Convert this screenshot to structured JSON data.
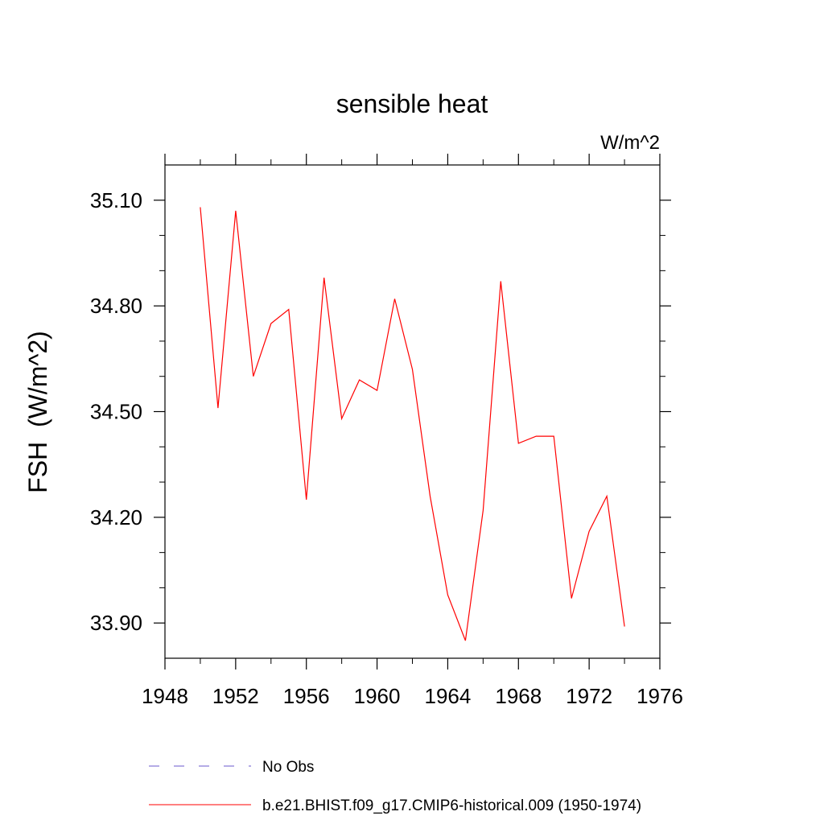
{
  "chart_data": {
    "type": "line",
    "title": "sensible heat",
    "units_label": "W/m^2",
    "ylabel": "FSH  (W/m^2)",
    "xlabel": "",
    "xlim": [
      1948,
      1976
    ],
    "ylim": [
      33.8,
      35.2
    ],
    "x_ticks": [
      1948,
      1952,
      1956,
      1960,
      1964,
      1968,
      1972,
      1976
    ],
    "y_ticks": [
      33.9,
      34.2,
      34.5,
      34.8,
      35.1
    ],
    "y_tick_labels": [
      "33.90",
      "34.20",
      "34.50",
      "34.80",
      "35.10"
    ],
    "x_minor_step": 2,
    "y_minor_step": 0.1,
    "grid": false,
    "legend_position": "bottom",
    "series": [
      {
        "name": "No Obs",
        "color": "#6a5acd",
        "style": "dashed",
        "x": [],
        "values": []
      },
      {
        "name": "b.e21.BHIST.f09_g17.CMIP6-historical.009 (1950-1974)",
        "color": "#ff0000",
        "style": "solid",
        "x": [
          1950,
          1951,
          1952,
          1953,
          1954,
          1955,
          1956,
          1957,
          1958,
          1959,
          1960,
          1961,
          1962,
          1963,
          1964,
          1965,
          1966,
          1967,
          1968,
          1969,
          1970,
          1971,
          1972,
          1973,
          1974
        ],
        "values": [
          35.08,
          34.51,
          35.07,
          34.6,
          34.75,
          34.79,
          34.25,
          34.88,
          34.48,
          34.59,
          34.56,
          34.82,
          34.62,
          34.26,
          33.98,
          33.85,
          34.22,
          34.87,
          34.41,
          34.43,
          34.43,
          33.97,
          34.16,
          34.26,
          33.89
        ]
      }
    ]
  }
}
